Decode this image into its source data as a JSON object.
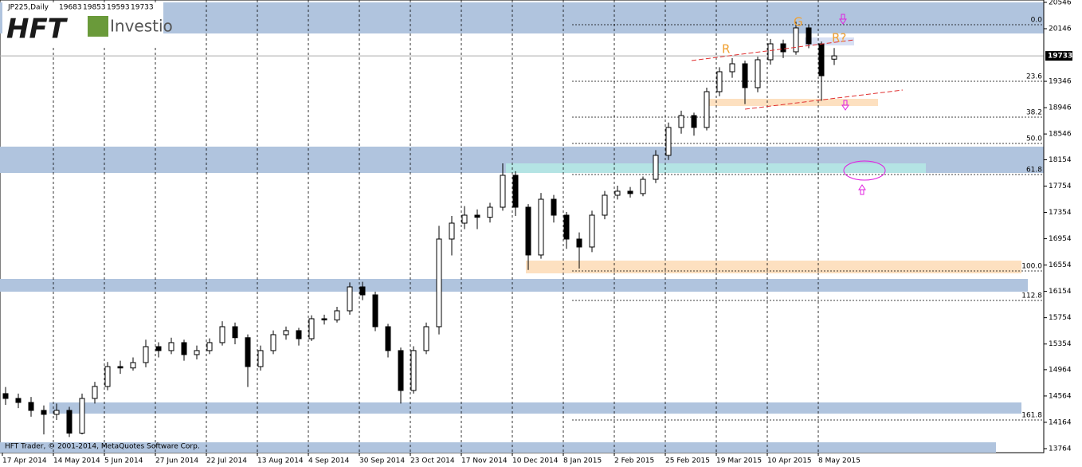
{
  "chart_data": {
    "type": "candlestick",
    "header": {
      "symbol": "JP225,Daily"
    },
    "logo": {
      "brand": "HFT",
      "name": "Investio"
    },
    "footer": "HFT Trader, © 2001-2014, MetaQuotes Software Corp.",
    "annotations": [
      "R",
      "G",
      "R?"
    ],
    "fib_levels": [
      "0.0",
      "23.6",
      "38.2",
      "50.0",
      "61.8",
      "100.0",
      "112.8",
      "161.8"
    ],
    "categories": [
      "17 Apr 2014",
      null,
      null,
      null,
      "14 May 2014",
      null,
      null,
      null,
      "5 Jun 2014",
      null,
      null,
      null,
      "27 Jun 2014",
      null,
      null,
      null,
      "22 Jul 2014",
      null,
      null,
      null,
      "13 Aug 2014",
      null,
      null,
      null,
      "4 Sep 2014",
      null,
      null,
      null,
      "30 Sep 2014",
      null,
      null,
      null,
      "23 Oct 2014",
      null,
      null,
      null,
      "17 Nov 2014",
      null,
      null,
      null,
      "10 Dec 2014",
      null,
      null,
      null,
      "8 Jan 2015",
      null,
      null,
      null,
      "2 Feb 2015",
      null,
      null,
      null,
      "25 Feb 2015",
      null,
      null,
      null,
      "19 Mar 2015",
      null,
      null,
      null,
      "10 Apr 2015",
      null,
      null,
      null,
      "8 May 2015",
      null
    ],
    "open": [
      14600,
      14527,
      14466,
      14345,
      14285,
      14345,
      14000,
      14527,
      14709,
      15011,
      14990,
      15072,
      15314,
      15254,
      15375,
      15193,
      15254,
      15375,
      15617,
      15450,
      15011,
      15254,
      15496,
      15557,
      15435,
      15738,
      15720,
      15859,
      16222,
      16101,
      15617,
      15254,
      14648,
      15254,
      15617,
      16949,
      17191,
      17312,
      17280,
      17433,
      17918,
      17433,
      16707,
      17554,
      17312,
      16949,
      16828,
      17312,
      17615,
      17676,
      17640,
      17857,
      18221,
      18645,
      18826,
      18645,
      19189,
      19492,
      19613,
      19250,
      19674,
      19916,
      19795,
      20158,
      19916,
      19683
    ],
    "high": [
      14700,
      14600,
      14550,
      14420,
      14450,
      14400,
      14600,
      14780,
      15080,
      15100,
      15150,
      15420,
      15380,
      15450,
      15420,
      15330,
      15440,
      15700,
      15680,
      15500,
      15330,
      15560,
      15620,
      15600,
      15790,
      15800,
      15920,
      16290,
      16300,
      16150,
      15660,
      15300,
      15320,
      15680,
      17150,
      17300,
      17450,
      17400,
      17500,
      18100,
      17980,
      17480,
      17650,
      17620,
      17360,
      17050,
      17380,
      17680,
      17760,
      17740,
      17900,
      18300,
      18720,
      18900,
      18870,
      19250,
      19560,
      19700,
      19660,
      19720,
      19990,
      19980,
      20250,
      20200,
      19950,
      19853
    ],
    "low": [
      14430,
      14380,
      14250,
      13980,
      14200,
      13940,
      13980,
      14450,
      14650,
      14900,
      14950,
      15000,
      15150,
      15200,
      15100,
      15120,
      15200,
      15330,
      15350,
      14700,
      14950,
      15200,
      15420,
      15330,
      15400,
      15650,
      15680,
      15800,
      16020,
      15550,
      15150,
      14450,
      14600,
      15200,
      15500,
      16700,
      17100,
      17100,
      17200,
      17380,
      17300,
      16480,
      16650,
      17200,
      16800,
      16500,
      16750,
      17250,
      17550,
      17580,
      17600,
      17800,
      18150,
      18550,
      18520,
      18600,
      19120,
      19400,
      19000,
      19180,
      19600,
      19700,
      19750,
      19850,
      19050,
      19593
    ],
    "close": [
      14527,
      14466,
      14345,
      14285,
      14345,
      14000,
      14527,
      14709,
      15011,
      14990,
      15072,
      15314,
      15254,
      15375,
      15193,
      15254,
      15375,
      15617,
      15450,
      15011,
      15254,
      15496,
      15557,
      15435,
      15738,
      15720,
      15859,
      16222,
      16101,
      15617,
      15254,
      14648,
      15254,
      15617,
      16949,
      17191,
      17312,
      17280,
      17433,
      17918,
      17433,
      16707,
      17554,
      17312,
      16949,
      16828,
      17312,
      17615,
      17676,
      17640,
      17857,
      18221,
      18645,
      18826,
      18645,
      19189,
      19492,
      19613,
      19250,
      19674,
      19916,
      19795,
      20158,
      19916,
      19431,
      19733
    ],
    "ylim": [
      13703,
      20582
    ],
    "yticks": [
      20546,
      20146,
      19346,
      18946,
      18546,
      18154,
      17754,
      17354,
      16954,
      16554,
      16154,
      15754,
      15354,
      14964,
      14564,
      14164,
      13764
    ],
    "grid": true
  }
}
